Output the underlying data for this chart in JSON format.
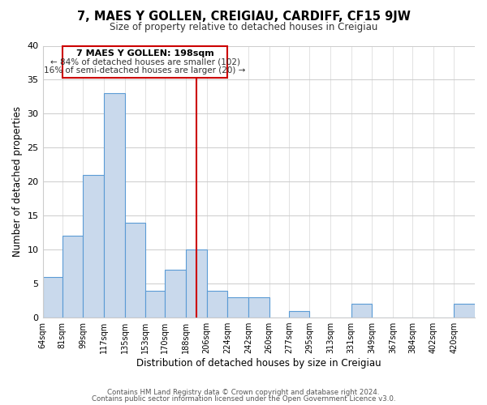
{
  "title": "7, MAES Y GOLLEN, CREIGIAU, CARDIFF, CF15 9JW",
  "subtitle": "Size of property relative to detached houses in Creigiau",
  "xlabel": "Distribution of detached houses by size in Creigiau",
  "ylabel": "Number of detached properties",
  "bar_labels": [
    "64sqm",
    "81sqm",
    "99sqm",
    "117sqm",
    "135sqm",
    "153sqm",
    "170sqm",
    "188sqm",
    "206sqm",
    "224sqm",
    "242sqm",
    "260sqm",
    "277sqm",
    "295sqm",
    "313sqm",
    "331sqm",
    "349sqm",
    "367sqm",
    "384sqm",
    "402sqm",
    "420sqm"
  ],
  "bar_values": [
    6,
    12,
    21,
    33,
    14,
    4,
    7,
    10,
    4,
    3,
    3,
    0,
    1,
    0,
    0,
    2,
    0,
    0,
    0,
    0,
    2
  ],
  "bin_edges": [
    64,
    81,
    99,
    117,
    135,
    153,
    170,
    188,
    206,
    224,
    242,
    260,
    277,
    295,
    313,
    331,
    349,
    367,
    384,
    402,
    420,
    438
  ],
  "bar_color": "#c9d9ec",
  "bar_edge_color": "#5b9bd5",
  "reference_line_x": 197,
  "reference_line_color": "#cc0000",
  "annotation_title": "7 MAES Y GOLLEN: 198sqm",
  "annotation_line1": "← 84% of detached houses are smaller (102)",
  "annotation_line2": "16% of semi-detached houses are larger (20) →",
  "annotation_box_color": "#ffffff",
  "annotation_box_edge_color": "#cc0000",
  "ylim": [
    0,
    40
  ],
  "yticks": [
    0,
    5,
    10,
    15,
    20,
    25,
    30,
    35,
    40
  ],
  "footer1": "Contains HM Land Registry data © Crown copyright and database right 2024.",
  "footer2": "Contains public sector information licensed under the Open Government Licence v3.0.",
  "background_color": "#ffffff",
  "grid_color": "#cccccc"
}
